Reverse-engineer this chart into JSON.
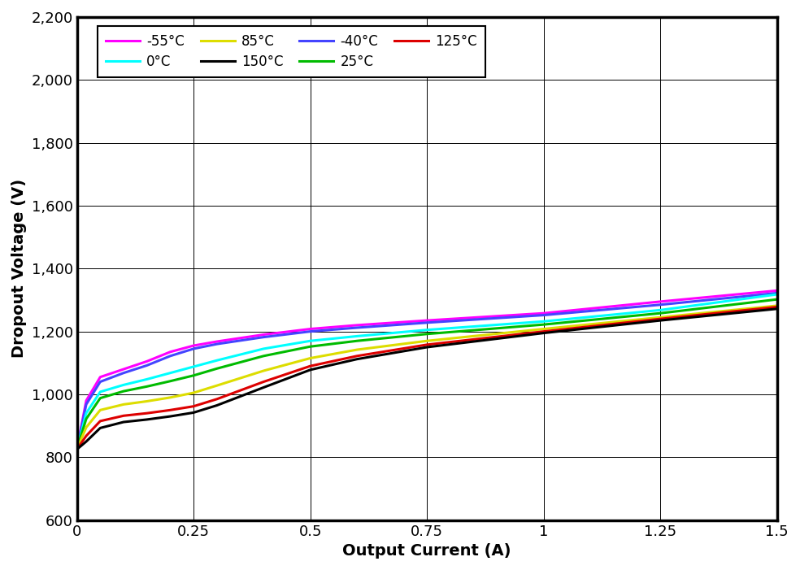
{
  "title": "",
  "xlabel": "Output Current (A)",
  "ylabel": "Dropout Voltage (V)",
  "xlim": [
    0,
    1.5
  ],
  "ylim": [
    600,
    2200
  ],
  "xticks": [
    0,
    0.25,
    0.5,
    0.75,
    1.0,
    1.25,
    1.5
  ],
  "yticks": [
    600,
    800,
    1000,
    1200,
    1400,
    1600,
    1800,
    2000,
    2200
  ],
  "series": [
    {
      "label": "-55°C",
      "color": "#FF00FF",
      "x": [
        0.0,
        0.02,
        0.05,
        0.1,
        0.15,
        0.2,
        0.25,
        0.3,
        0.4,
        0.5,
        0.6,
        0.75,
        1.0,
        1.25,
        1.5
      ],
      "y": [
        825,
        980,
        1055,
        1080,
        1105,
        1135,
        1155,
        1168,
        1190,
        1208,
        1220,
        1235,
        1258,
        1295,
        1330
      ]
    },
    {
      "label": "-40°C",
      "color": "#4444FF",
      "x": [
        0.0,
        0.02,
        0.05,
        0.1,
        0.15,
        0.2,
        0.25,
        0.3,
        0.4,
        0.5,
        0.6,
        0.75,
        1.0,
        1.25,
        1.5
      ],
      "y": [
        825,
        968,
        1040,
        1068,
        1092,
        1122,
        1145,
        1160,
        1182,
        1200,
        1212,
        1228,
        1252,
        1285,
        1322
      ]
    },
    {
      "label": "0°C",
      "color": "#00FFFF",
      "x": [
        0.0,
        0.02,
        0.05,
        0.1,
        0.15,
        0.2,
        0.25,
        0.3,
        0.4,
        0.5,
        0.6,
        0.75,
        1.0,
        1.25,
        1.5
      ],
      "y": [
        825,
        940,
        1008,
        1030,
        1048,
        1068,
        1088,
        1108,
        1145,
        1170,
        1185,
        1205,
        1232,
        1268,
        1318
      ]
    },
    {
      "label": "25°C",
      "color": "#00BB00",
      "x": [
        0.0,
        0.02,
        0.05,
        0.1,
        0.15,
        0.2,
        0.25,
        0.3,
        0.4,
        0.5,
        0.6,
        0.75,
        1.0,
        1.25,
        1.5
      ],
      "y": [
        825,
        922,
        988,
        1010,
        1025,
        1042,
        1060,
        1082,
        1122,
        1152,
        1170,
        1192,
        1222,
        1258,
        1302
      ]
    },
    {
      "label": "85°C",
      "color": "#DDDD00",
      "x": [
        0.0,
        0.02,
        0.05,
        0.1,
        0.15,
        0.2,
        0.25,
        0.3,
        0.4,
        0.5,
        0.6,
        0.75,
        1.0,
        1.25,
        1.5
      ],
      "y": [
        825,
        895,
        950,
        968,
        978,
        990,
        1005,
        1028,
        1075,
        1115,
        1142,
        1170,
        1208,
        1245,
        1282
      ]
    },
    {
      "label": "125°C",
      "color": "#DD0000",
      "x": [
        0.0,
        0.02,
        0.05,
        0.1,
        0.15,
        0.2,
        0.25,
        0.3,
        0.4,
        0.5,
        0.6,
        0.75,
        1.0,
        1.25,
        1.5
      ],
      "y": [
        825,
        868,
        915,
        932,
        940,
        950,
        962,
        985,
        1040,
        1090,
        1122,
        1158,
        1200,
        1240,
        1278
      ]
    },
    {
      "label": "150°C",
      "color": "#000000",
      "x": [
        0.0,
        0.02,
        0.05,
        0.1,
        0.15,
        0.2,
        0.25,
        0.3,
        0.4,
        0.5,
        0.6,
        0.75,
        1.0,
        1.25,
        1.5
      ],
      "y": [
        825,
        850,
        893,
        912,
        920,
        930,
        942,
        965,
        1022,
        1078,
        1112,
        1150,
        1195,
        1235,
        1272
      ]
    }
  ],
  "legend_order": [
    0,
    2,
    4,
    6,
    1,
    3,
    5
  ],
  "background_color": "#FFFFFF",
  "grid_color": "#000000",
  "linewidth": 2.2
}
